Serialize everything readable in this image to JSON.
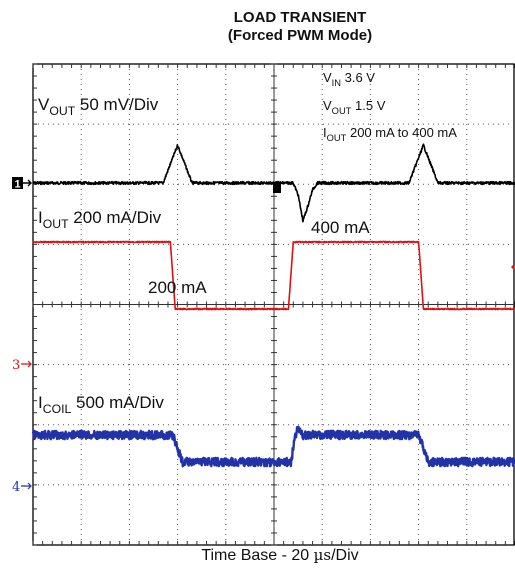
{
  "chart_data": {
    "type": "line",
    "title": "LOAD TRANSIENT",
    "subtitle": "(Forced PWM Mode)",
    "xlabel": "Time Base - 20 µs/Div",
    "xlabel_parts": {
      "before": "Time Base - 20 ",
      "unit": "µs",
      "after": "/Div"
    },
    "grid": true,
    "divisions": {
      "x": 10,
      "y": 8
    },
    "conditions": [
      {
        "sym": "V",
        "sub": "IN",
        "text": " 3.6 V"
      },
      {
        "sym": "V",
        "sub": "OUT",
        "text": " 1.5 V"
      },
      {
        "sym": "I",
        "sub": "OUT",
        "text": " 200 mA to 400 mA"
      }
    ],
    "channel_labels": [
      {
        "sym": "V",
        "sub": "OUT",
        "text": " 50 mV/Div"
      },
      {
        "sym": "I",
        "sub": "OUT",
        "text": " 200 mA/Div"
      },
      {
        "sym": "I",
        "sub": "COIL",
        "text": " 500 mA/Div"
      }
    ],
    "level_labels": [
      "400 mA",
      "200 mA"
    ],
    "ch1_marker": {
      "text": "1",
      "color": "#000000"
    },
    "ch3_marker": {
      "text": "3",
      "color": "#dd1111"
    },
    "ch4_marker": {
      "text": "4",
      "color": "#2233aa"
    },
    "xlim": [
      0,
      200
    ],
    "edges_us": [
      {
        "t": 60,
        "type": "fall"
      },
      {
        "t": 110,
        "type": "rise"
      },
      {
        "t": 162,
        "type": "fall"
      }
    ],
    "series": [
      {
        "name": "V(OUT)",
        "color": "#000000",
        "unit": "mV",
        "x": [
          0,
          54,
          60,
          66,
          72,
          108,
          110,
          112,
          114,
          116,
          118,
          122,
          130,
          156,
          162,
          168,
          172,
          200
        ],
        "y": [
          0,
          0,
          45,
          0,
          0,
          0,
          -14,
          -45,
          -28,
          -8,
          0,
          0,
          0,
          0,
          45,
          0,
          0,
          0
        ]
      },
      {
        "name": "I(OUT)",
        "color": "#dd1111",
        "unit": "mA",
        "x": [
          0,
          57,
          59,
          106,
          108,
          160,
          162,
          200
        ],
        "y": [
          400,
          400,
          200,
          200,
          400,
          400,
          200,
          200
        ]
      },
      {
        "name": "I(COIL)",
        "color": "#2233aa",
        "unit": "mA",
        "x": [
          0,
          58,
          62,
          107,
          109,
          110,
          112,
          160,
          164,
          200
        ],
        "y": [
          400,
          400,
          200,
          200,
          400,
          450,
          400,
          400,
          200,
          200
        ]
      }
    ]
  }
}
